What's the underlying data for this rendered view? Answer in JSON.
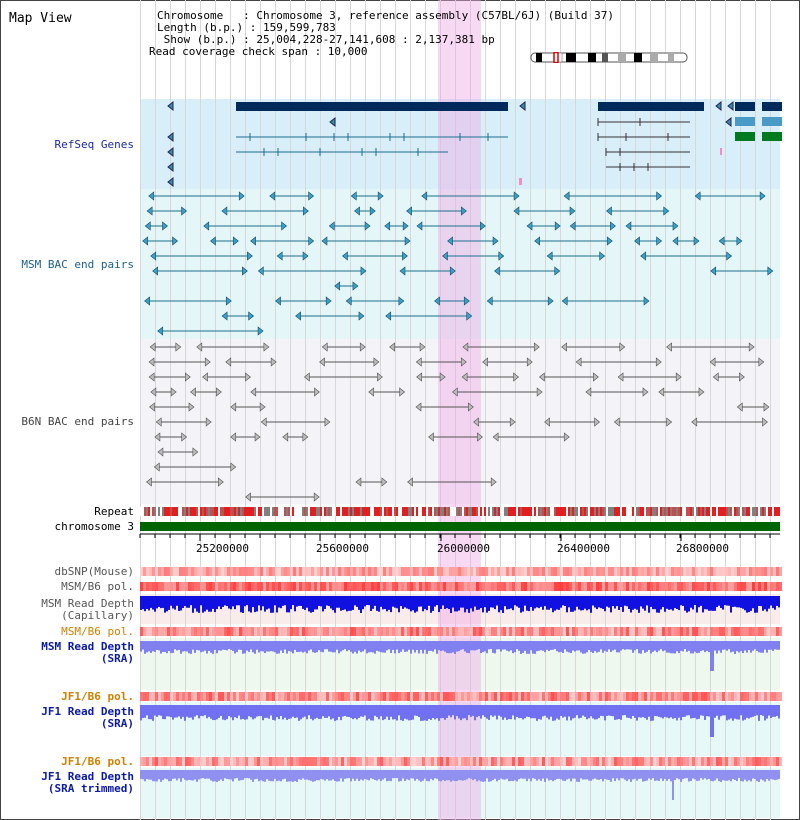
{
  "header": {
    "title": "Map View",
    "chromosome_line": "Chromosome   : Chromosome 3, reference assembly (C57BL/6J) (Build 37)",
    "length_line": "Length (b.p.) : 159,599,783",
    "show_line": " Show (b.p.) : 25,004,228-27,141,608 : 2,137,381 bp",
    "coverage_line": "Read coverage check span : 10,000"
  },
  "tracks": {
    "refseq": "RefSeq Genes",
    "msm_bac": "MSM BAC end pairs",
    "b6n_bac": "B6N BAC end pairs",
    "repeat": "Repeat",
    "chromosome": "chromosome 3",
    "dbsnp": "dbSNP(Mouse)",
    "msm_b6_pol_1": "MSM/B6 pol.",
    "msm_read_depth_cap_1": "MSM Read Depth",
    "msm_read_depth_cap_2": "(Capillary)",
    "msm_b6_pol_2": "MSM/B6 pol.",
    "msm_read_depth_sra_1": "MSM Read Depth",
    "msm_read_depth_sra_2": "(SRA)",
    "jf1_b6_pol_1": "JF1/B6 pol.",
    "jf1_read_depth_sra_1": "JF1 Read Depth",
    "jf1_read_depth_sra_2": "(SRA)",
    "jf1_b6_pol_2": "JF1/B6 pol.",
    "jf1_read_depth_trim_1": "JF1 Read Depth",
    "jf1_read_depth_trim_2": "(SRA trimmed)"
  },
  "axis": {
    "ticks": [
      "25200000",
      "25600000",
      "26000000",
      "26400000",
      "26800000"
    ]
  },
  "colors": {
    "refseq_label": "#1a2aa0",
    "msm_label": "#1b5f8a",
    "b6n_label": "#444444",
    "pol_label": "#d08000",
    "depth_label": "#0a1aa8",
    "highlight": "#f0aae6",
    "chromosome_bar": "#006400"
  }
}
